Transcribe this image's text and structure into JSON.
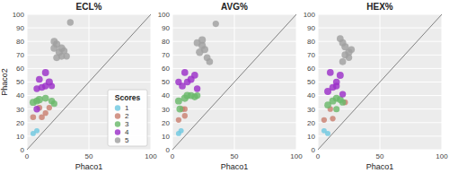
{
  "chart_data": [
    {
      "type": "scatter",
      "title": "ECL%",
      "xlabel": "Phaco1",
      "ylabel": "Phaco2",
      "xlim": [
        0,
        100
      ],
      "ylim": [
        0,
        100
      ],
      "xticks": [
        0,
        50,
        100
      ],
      "yticks": [
        0,
        10,
        20,
        30,
        40,
        50,
        60,
        70,
        80,
        90,
        100
      ],
      "grid": true,
      "legend": "lower right",
      "legend_title": "Scores",
      "series": [
        {
          "type": "line",
          "color": "gray",
          "x": [
            0,
            100
          ],
          "values": [
            0,
            100
          ]
        },
        {
          "name": "1",
          "color": "#6fc8e0",
          "x": [
            5,
            8
          ],
          "values": [
            12,
            14
          ],
          "sizes": [
            18,
            18
          ]
        },
        {
          "name": "2",
          "color": "#c98070",
          "x": [
            5,
            12,
            10,
            18,
            15
          ],
          "values": [
            24,
            24,
            31,
            31,
            27
          ],
          "sizes": [
            22,
            22,
            22,
            20,
            20
          ]
        },
        {
          "name": "3",
          "color": "#6ab86a",
          "x": [
            5,
            10,
            15,
            20,
            8,
            22
          ],
          "values": [
            35,
            37,
            38,
            36,
            36,
            34
          ],
          "sizes": [
            32,
            34,
            30,
            28,
            30,
            26
          ]
        },
        {
          "name": "4",
          "color": "#9b30c8",
          "x": [
            8,
            12,
            18,
            10,
            15,
            8,
            15,
            20
          ],
          "values": [
            30,
            46,
            50,
            52,
            57,
            45,
            47,
            47
          ],
          "sizes": [
            28,
            30,
            34,
            30,
            32,
            28,
            28,
            26
          ]
        },
        {
          "name": "5",
          "color": "#a0a0a0",
          "x": [
            22,
            26,
            28,
            24,
            22,
            28,
            24,
            30,
            32,
            35
          ],
          "values": [
            75,
            72,
            75,
            78,
            80,
            69,
            68,
            73,
            69,
            94
          ],
          "sizes": [
            34,
            32,
            36,
            34,
            32,
            30,
            30,
            30,
            28,
            28
          ]
        }
      ]
    },
    {
      "type": "scatter",
      "title": "AVG%",
      "xlabel": "Phaco1",
      "xlim": [
        0,
        100
      ],
      "ylim": [
        0,
        100
      ],
      "xticks": [
        0,
        50,
        100
      ],
      "yticks": [
        0,
        10,
        20,
        30,
        40,
        50,
        60,
        70,
        80,
        90,
        100
      ],
      "grid": true,
      "series": [
        {
          "type": "line",
          "color": "gray",
          "x": [
            0,
            100
          ],
          "values": [
            0,
            100
          ]
        },
        {
          "color": "#6fc8e0",
          "x": [
            5,
            7
          ],
          "values": [
            12,
            14
          ],
          "sizes": [
            18,
            18
          ]
        },
        {
          "color": "#c98070",
          "x": [
            5,
            10,
            10,
            8
          ],
          "values": [
            22,
            25,
            30,
            30
          ],
          "sizes": [
            20,
            20,
            20,
            20
          ]
        },
        {
          "color": "#6ab86a",
          "x": [
            5,
            10,
            12,
            15,
            18,
            20,
            6
          ],
          "values": [
            36,
            38,
            40,
            40,
            39,
            40,
            30
          ],
          "sizes": [
            32,
            34,
            34,
            32,
            30,
            28,
            30
          ]
        },
        {
          "color": "#9b30c8",
          "x": [
            8,
            12,
            15,
            18,
            10,
            5,
            20
          ],
          "values": [
            47,
            50,
            52,
            55,
            57,
            50,
            45
          ],
          "sizes": [
            30,
            30,
            32,
            30,
            30,
            28,
            28
          ]
        },
        {
          "color": "#a0a0a0",
          "x": [
            22,
            26,
            24,
            20,
            24,
            28,
            30,
            35
          ],
          "values": [
            72,
            74,
            77,
            79,
            81,
            68,
            65,
            93
          ],
          "sizes": [
            36,
            34,
            34,
            32,
            34,
            30,
            30,
            26
          ]
        }
      ]
    },
    {
      "type": "scatter",
      "title": "HEX%",
      "xlabel": "Phaco1",
      "xlim": [
        0,
        100
      ],
      "ylim": [
        0,
        100
      ],
      "xticks": [
        0,
        50,
        100
      ],
      "yticks": [
        0,
        10,
        20,
        30,
        40,
        50,
        60,
        70,
        80,
        90,
        100
      ],
      "grid": true,
      "series": [
        {
          "type": "line",
          "color": "gray",
          "x": [
            0,
            100
          ],
          "values": [
            0,
            100
          ]
        },
        {
          "color": "#6fc8e0",
          "x": [
            5,
            8
          ],
          "values": [
            14,
            12
          ],
          "sizes": [
            18,
            18
          ]
        },
        {
          "color": "#c98070",
          "x": [
            5,
            12,
            10,
            22
          ],
          "values": [
            22,
            23,
            30,
            35
          ],
          "sizes": [
            20,
            20,
            20,
            20
          ]
        },
        {
          "color": "#6ab86a",
          "x": [
            8,
            12,
            15,
            18,
            20,
            15
          ],
          "values": [
            33,
            36,
            38,
            37,
            35,
            30
          ],
          "sizes": [
            30,
            32,
            32,
            30,
            28,
            26
          ]
        },
        {
          "color": "#9b30c8",
          "x": [
            8,
            12,
            15,
            18,
            10,
            20,
            15
          ],
          "values": [
            43,
            46,
            50,
            55,
            57,
            41,
            47
          ],
          "sizes": [
            32,
            30,
            30,
            32,
            30,
            28,
            28
          ]
        },
        {
          "color": "#a0a0a0",
          "x": [
            20,
            22,
            25,
            22,
            20,
            18,
            25,
            27
          ],
          "values": [
            65,
            70,
            72,
            76,
            79,
            82,
            68,
            74
          ],
          "sizes": [
            30,
            32,
            34,
            34,
            32,
            30,
            28,
            30
          ]
        }
      ]
    }
  ]
}
